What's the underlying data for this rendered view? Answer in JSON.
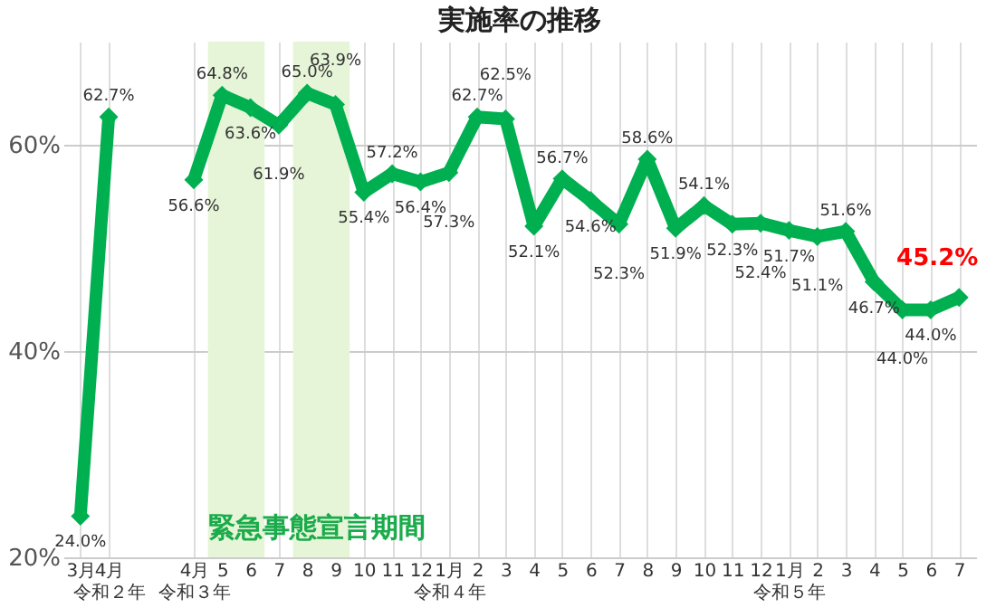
{
  "chart_data": {
    "type": "line",
    "title": "実施率の推移",
    "categories": [
      "3月",
      "4月令和２年",
      null,
      null,
      "4月令和３年",
      "5",
      "6",
      "7",
      "8",
      "9",
      "10",
      "11",
      "12",
      "1月令和４年",
      "2",
      "3",
      "4",
      "5",
      "6",
      "7",
      "8",
      "9",
      "10",
      "11",
      "12",
      "1月令和５年",
      "2",
      "3",
      "4",
      "5",
      "6",
      "7"
    ],
    "series": [
      {
        "color": "#00b050",
        "values": [
          24.0,
          62.7,
          null,
          null,
          56.6,
          64.8,
          63.6,
          61.9,
          65.0,
          63.9,
          55.4,
          57.2,
          56.4,
          57.3,
          62.7,
          62.5,
          52.1,
          56.7,
          54.6,
          52.3,
          58.6,
          51.9,
          54.1,
          52.3,
          52.4,
          51.7,
          51.1,
          51.6,
          46.7,
          44.0,
          44.0,
          45.2
        ],
        "value_labels": [
          "24.0%",
          "62.7%",
          null,
          null,
          "56.6%",
          "64.8%",
          "63.6%",
          "61.9%",
          "65.0%",
          "63.9%",
          "55.4%",
          "57.2%",
          "56.4%",
          "57.3%",
          "62.7%",
          "62.5%",
          "52.1%",
          "56.7%",
          "54.6%",
          "52.3%",
          "58.6%",
          "51.9%",
          "54.1%",
          "52.3%",
          "52.4%",
          "51.7%",
          "51.1%",
          "51.6%",
          "46.7%",
          "44.0%",
          "44.0%",
          "45.2%"
        ]
      }
    ],
    "bands": [
      {
        "axis": "x",
        "from": "5",
        "to": "6",
        "label": "緊急事態宣言期間",
        "color": "#e6f5d8"
      },
      {
        "axis": "x",
        "from": "8",
        "to": "9",
        "color": "#e6f5d8"
      }
    ],
    "ylim": [
      20,
      70
    ],
    "yticks": [
      {
        "value": 20,
        "label": "20%"
      },
      {
        "value": 40,
        "label": "40%"
      },
      {
        "value": 60,
        "label": "60%"
      }
    ],
    "grid": true,
    "marker": "diamond",
    "line_style": "solid"
  }
}
